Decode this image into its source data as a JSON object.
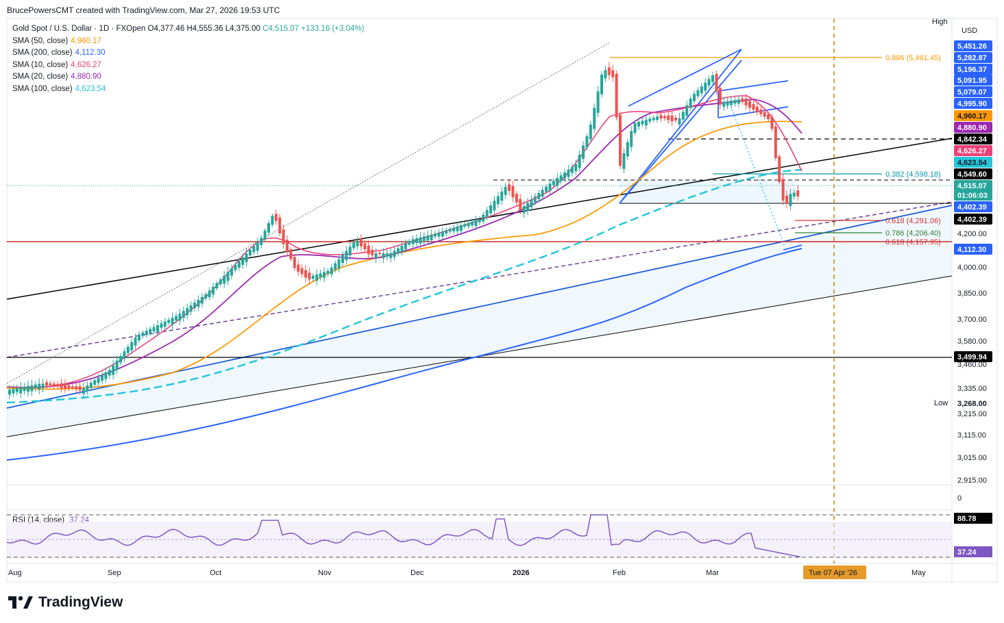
{
  "header": {
    "credit": "BrucePowersCMT created with TradingView.com, Mar 27, 2026 19:53 UTC"
  },
  "ohlc": {
    "symbol": "Gold Spot / U.S. Dollar · 1D · FXOpen",
    "o": "O4,377.46",
    "h": "H4,555.36",
    "l": "L4,375.00",
    "c": "C4,515.07",
    "chg": "+133.16 (+3.04%)",
    "color": "#26a69a"
  },
  "indicators": [
    {
      "label": "SMA (50, close)",
      "value": "4,960.17",
      "color": "#ff9800"
    },
    {
      "label": "SMA (200, close)",
      "value": "4,112.30",
      "color": "#2962ff"
    },
    {
      "label": "SMA (10, close)",
      "value": "4,626.27",
      "color": "#ec407a"
    },
    {
      "label": "SMA (20, close)",
      "value": "4,880.90",
      "color": "#9c27b0"
    },
    {
      "label": "SMA (100, close)",
      "value": "4,623.54",
      "color": "#26c6da"
    }
  ],
  "rsi": {
    "label": "RSI (14, close)",
    "value": "37.24"
  },
  "corner": {
    "high": "High",
    "low": "Low",
    "currency": "USD"
  },
  "footer": {
    "brand": "TradingView",
    "logo": "tradingview-logo"
  },
  "chart_data": {
    "type": "candlestick",
    "timeframe": "1D",
    "xlabels": [
      "Aug",
      "Sep",
      "Oct",
      "Nov",
      "Dec",
      "2026",
      "Feb",
      "Mar",
      "Apr",
      "May"
    ],
    "x_marker": "Tue 07 Apr '26",
    "y_ticks": [
      "4,200.00",
      "4,000.00",
      "3,850.00",
      "3,700.00",
      "3,580.00",
      "3,460.00",
      "3,335.00",
      "3,215.00",
      "3,115.00",
      "3,015.00",
      "2,915.00"
    ],
    "price_scale_bottom_label": "0",
    "rsi_ticks": [
      "88.78",
      "37.24"
    ],
    "series_ohlc": {
      "last_open": 4377.46,
      "last_high": 4555.36,
      "last_low": 4375.0,
      "last_close": 4515.07
    },
    "price_labels": [
      {
        "text": "5,451.26",
        "bg": "#2962ff",
        "fg": "#ffffff"
      },
      {
        "text": "5,282.87",
        "bg": "#2962ff",
        "fg": "#ffffff"
      },
      {
        "text": "5,196.37",
        "bg": "#2962ff",
        "fg": "#ffffff"
      },
      {
        "text": "5,091.95",
        "bg": "#2962ff",
        "fg": "#ffffff"
      },
      {
        "text": "5,079.07",
        "bg": "#2962ff",
        "fg": "#ffffff"
      },
      {
        "text": "4,995.90",
        "bg": "#2962ff",
        "fg": "#ffffff"
      },
      {
        "text": "4,960.17",
        "bg": "#ff9800",
        "fg": "#131722"
      },
      {
        "text": "4,880.90",
        "bg": "#9c27b0",
        "fg": "#ffffff"
      },
      {
        "text": "4,842.34",
        "bg": "#000000",
        "fg": "#ffffff"
      },
      {
        "text": "4,626.27",
        "bg": "#ec407a",
        "fg": "#ffffff"
      },
      {
        "text": "4,623.54",
        "bg": "#26c6da",
        "fg": "#131722"
      },
      {
        "text": "4,549.60",
        "bg": "#000000",
        "fg": "#ffffff"
      },
      {
        "text": "4,515.07",
        "bg": "#26a69a",
        "fg": "#ffffff"
      },
      {
        "text": "01:06:03",
        "bg": "#26a69a",
        "fg": "#ffffff"
      },
      {
        "text": "4,402.39",
        "bg": "#2962ff",
        "fg": "#ffffff"
      },
      {
        "text": "4,402.39",
        "bg": "#000000",
        "fg": "#ffffff"
      },
      {
        "text": "4,112.30",
        "bg": "#2962ff",
        "fg": "#ffffff"
      },
      {
        "text": "3,499.94",
        "bg": "#000000",
        "fg": "#ffffff"
      },
      {
        "text": "3,268.00",
        "bg": "#ffffff",
        "fg": "#131722"
      }
    ],
    "fib_levels": [
      {
        "ratio": "0.886",
        "price": "(5,461.45)",
        "color": "#ff9800"
      },
      {
        "ratio": "0.382",
        "price": "(4,598.18)",
        "color": "#0097a7"
      },
      {
        "ratio": "0.618",
        "price": "(4,291.06)",
        "color": "#d32f2f"
      },
      {
        "ratio": "0.786",
        "price": "(4,206.40)",
        "color": "#2e7d32"
      },
      {
        "ratio": "0.618",
        "price": "(4,157.95)",
        "color": "#d32f2f"
      }
    ],
    "colors": {
      "up": "#26a69a",
      "down": "#ef5350"
    }
  }
}
